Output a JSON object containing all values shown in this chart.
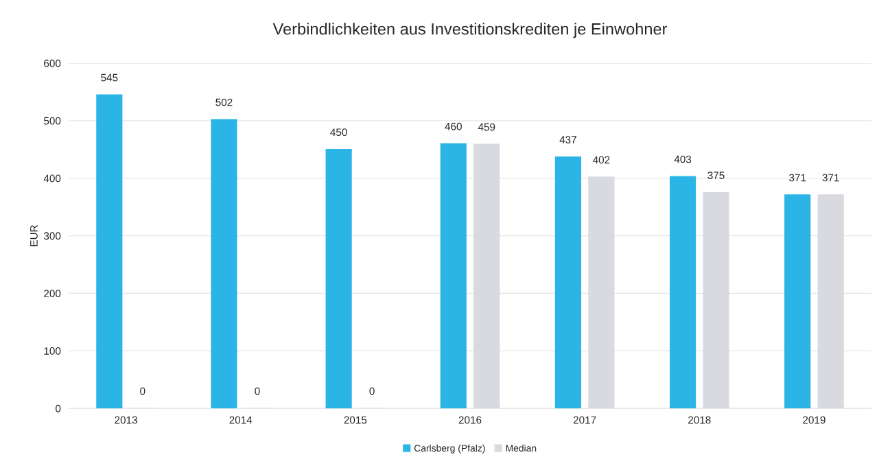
{
  "chart_data": {
    "type": "bar",
    "title": "Verbindlichkeiten aus Investitionskrediten je Einwohner",
    "ylabel": "EUR",
    "categories": [
      "2013",
      "2014",
      "2015",
      "2016",
      "2017",
      "2018",
      "2019"
    ],
    "series": [
      {
        "name": "Carlsberg (Pfalz)",
        "color": "#2bb5e6",
        "values": [
          545,
          502,
          450,
          460,
          437,
          403,
          371
        ]
      },
      {
        "name": "Median",
        "color": "#d9dadf",
        "values": [
          0,
          0,
          0,
          459,
          402,
          375,
          371
        ]
      }
    ],
    "ylim": [
      0,
      600
    ],
    "yticks": [
      0,
      100,
      200,
      300,
      400,
      500,
      600
    ],
    "grid": "y",
    "legend": "bottom",
    "data_labels": true
  }
}
